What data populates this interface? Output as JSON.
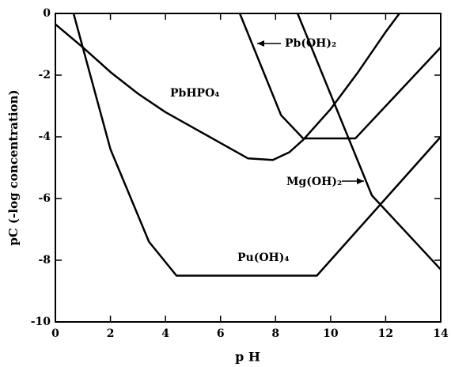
{
  "chart_data": {
    "type": "line",
    "xlabel": "p H",
    "ylabel": "pC (-log concentration)",
    "xlim": [
      0,
      14
    ],
    "ylim": [
      -10,
      0
    ],
    "xticks": [
      0,
      2,
      4,
      6,
      8,
      10,
      12,
      14
    ],
    "yticks": [
      0,
      -2,
      -4,
      -6,
      -8,
      -10
    ],
    "series": [
      {
        "name": "PbHPO₄",
        "color": "#000000",
        "x": [
          0,
          1,
          2,
          3,
          4,
          5,
          6,
          7,
          7.9,
          8.5,
          9,
          10,
          11,
          12,
          12.5
        ],
        "values": [
          -0.35,
          -1.1,
          -1.9,
          -2.6,
          -3.2,
          -3.7,
          -4.2,
          -4.7,
          -4.75,
          -4.5,
          -4.1,
          -3.1,
          -1.9,
          -0.6,
          0
        ]
      },
      {
        "name": "Pu(OH)₄",
        "color": "#000000",
        "x": [
          0.66,
          2,
          3.4,
          4.4,
          9.5,
          14
        ],
        "values": [
          0,
          -4.4,
          -7.4,
          -8.5,
          -8.5,
          -4
        ]
      },
      {
        "name": "Pb(OH)₂",
        "color": "#000000",
        "x": [
          6.7,
          8.2,
          9,
          10.9,
          14
        ],
        "values": [
          0,
          -3.3,
          -4.05,
          -4.05,
          -1.1
        ]
      },
      {
        "name": "Mg(OH)₂",
        "color": "#000000",
        "x": [
          8.8,
          11.5,
          14
        ],
        "values": [
          0,
          -5.9,
          -8.3
        ]
      }
    ]
  }
}
